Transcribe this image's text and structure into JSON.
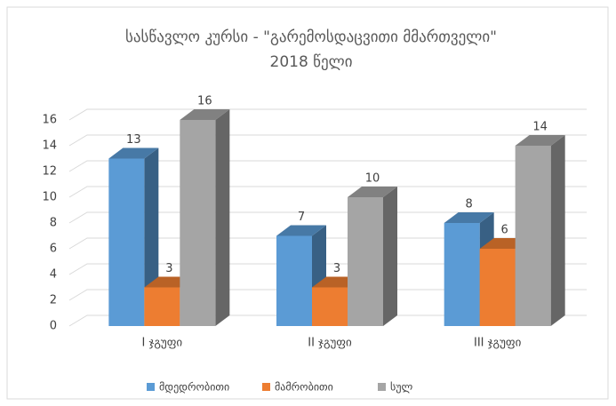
{
  "chart_data": {
    "type": "bar3d",
    "title": "სასწავლო კურსი - \"გარემოსდაცვითი მმართველი\"",
    "subtitle": "2018 წელი",
    "categories": [
      "I ჯგუფი",
      "II ჯგუფი",
      "III ჯგუფი"
    ],
    "series": [
      {
        "name": "მდედრობითი",
        "color": "#5b9bd5",
        "values": [
          13,
          7,
          8
        ]
      },
      {
        "name": "მამრობითი",
        "color": "#ed7d31",
        "values": [
          3,
          3,
          6
        ]
      },
      {
        "name": "სულ",
        "color": "#a5a5a5",
        "values": [
          16,
          10,
          14
        ]
      }
    ],
    "ylim": [
      0,
      16
    ],
    "yticks": [
      0,
      2,
      4,
      6,
      8,
      10,
      12,
      14,
      16
    ],
    "grid": true,
    "legend": "bottom"
  }
}
